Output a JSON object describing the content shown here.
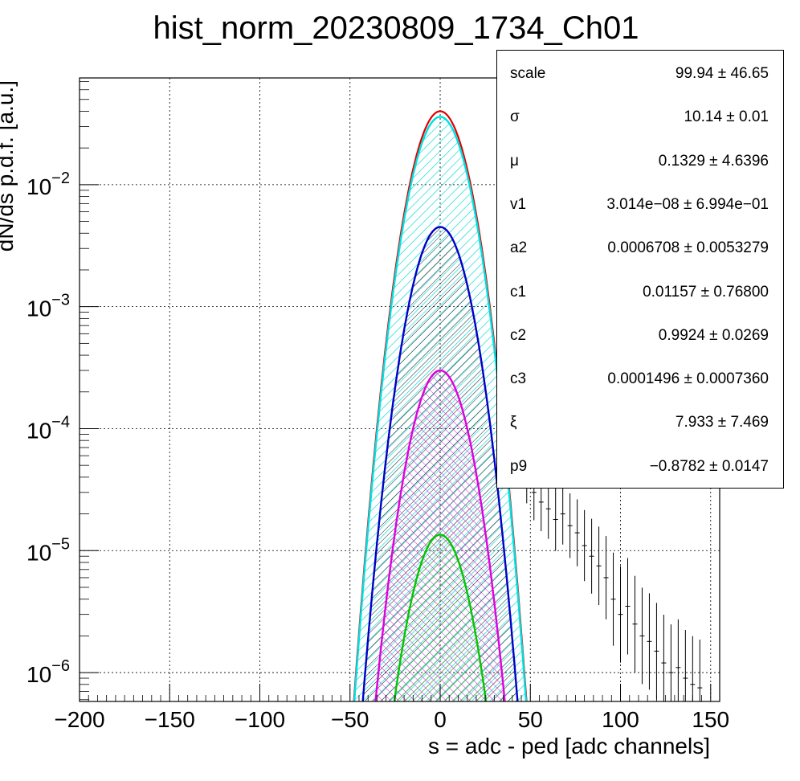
{
  "colors": {
    "total": "#e00000",
    "c_main": "#00e0e0",
    "c_second": "#0000c8",
    "c_third": "#e000e0",
    "c_fourth": "#00c800",
    "data": "#000000"
  },
  "chart_data": {
    "type": "line",
    "title": "hist_norm_20230809_1734_Ch01",
    "xlabel": "s = adc - ped [adc channels]",
    "ylabel": "dN/ds p.d.f. [a.u.]",
    "log_y": true,
    "xlim": [
      -200,
      155
    ],
    "ylim": [
      5.8e-07,
      0.075
    ],
    "grid": true,
    "x_ticks": [
      -200,
      -150,
      -100,
      -50,
      0,
      50,
      100,
      150
    ],
    "x_tick_labels": [
      "−200",
      "−150",
      "−100",
      "−50",
      "0",
      "50",
      "100",
      "150"
    ],
    "y_ticks": [
      1e-06,
      1e-05,
      0.0001,
      0.001,
      0.01
    ],
    "y_tick_labels": [
      {
        "base": "10",
        "exp": "−6"
      },
      {
        "base": "10",
        "exp": "−5"
      },
      {
        "base": "10",
        "exp": "−4"
      },
      {
        "base": "10",
        "exp": "−3"
      },
      {
        "base": "10",
        "exp": "−2"
      }
    ],
    "components": [
      {
        "role": "total",
        "amplitude": 0.04,
        "mean": 0,
        "sigma": 10.14,
        "hatch": "none"
      },
      {
        "role": "c_main",
        "amplitude": 0.036,
        "mean": 0,
        "sigma": 10.14,
        "hatch": "diag"
      },
      {
        "role": "c_second",
        "amplitude": 0.0045,
        "mean": 0,
        "sigma": 10.14,
        "hatch": "diag"
      },
      {
        "role": "c_third",
        "amplitude": 0.0003,
        "mean": 0,
        "sigma": 10.14,
        "hatch": "cross"
      },
      {
        "role": "c_fourth",
        "amplitude": 1.35e-05,
        "mean": 0,
        "sigma": 10.14,
        "hatch": "diag"
      }
    ],
    "data_tail": {
      "x": [
        48,
        52,
        56,
        60,
        64,
        68,
        72,
        76,
        80,
        84,
        88,
        92,
        96,
        100,
        104,
        108,
        112,
        116,
        120,
        124,
        128,
        132,
        136,
        140,
        144
      ],
      "y": [
        4e-05,
        3e-05,
        2.5e-05,
        2.2e-05,
        1.8e-05,
        2e-05,
        1.6e-05,
        1.4e-05,
        1.1e-05,
        9e-06,
        7.5e-06,
        6e-06,
        4e-06,
        3e-06,
        3.5e-06,
        2.5e-06,
        2e-06,
        1.8e-06,
        1.5e-06,
        1.2e-06,
        1e-06,
        1.1e-06,
        9e-07,
        8e-07,
        7.5e-07
      ]
    },
    "stats": [
      {
        "name": "scale",
        "value": "99.94 ± 46.65"
      },
      {
        "name": "σ",
        "value": "10.14 ± 0.01"
      },
      {
        "name": "μ",
        "value": "0.1329 ± 4.6396"
      },
      {
        "name": "v1",
        "value": "3.014e−08 ± 6.994e−01"
      },
      {
        "name": "a2",
        "value": "0.0006708 ± 0.0053279"
      },
      {
        "name": "c1",
        "value": "0.01157 ± 0.76800"
      },
      {
        "name": "c2",
        "value": "0.9924 ± 0.0269"
      },
      {
        "name": "c3",
        "value": "0.0001496 ± 0.0007360"
      },
      {
        "name": "ξ",
        "value": "7.933 ± 7.469"
      },
      {
        "name": "p9",
        "value": "−0.8782 ± 0.0147"
      }
    ]
  }
}
